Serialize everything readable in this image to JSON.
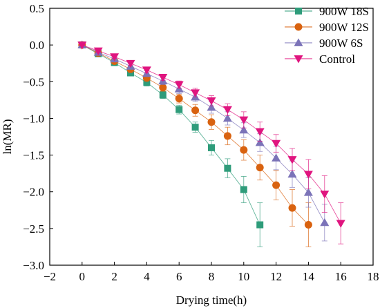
{
  "chart_data": {
    "type": "line",
    "xlabel": "Drying time(h)",
    "ylabel": "ln(MR)",
    "xlim": [
      -2,
      18
    ],
    "ylim": [
      -3.0,
      0.5
    ],
    "x_ticks": [
      -2,
      0,
      2,
      4,
      6,
      8,
      10,
      12,
      14,
      16,
      18
    ],
    "y_ticks": [
      0.5,
      0.0,
      -0.5,
      -1.0,
      -1.5,
      -2.0,
      -2.5,
      -3.0
    ],
    "x_tick_labels": [
      "−2",
      "0",
      "2",
      "4",
      "6",
      "8",
      "10",
      "12",
      "14",
      "16",
      "18"
    ],
    "y_tick_labels": [
      "0.5",
      "0.0",
      "−0.5",
      "−1.0",
      "−1.5",
      "−2.0",
      "−2.5",
      "−3.0"
    ],
    "legend_position": "top-right",
    "grid": false,
    "series": [
      {
        "name": "900W 18S",
        "color": "#2e9c7a",
        "marker": "square",
        "x": [
          0,
          1,
          2,
          3,
          4,
          5,
          6,
          7,
          8,
          9,
          10,
          11
        ],
        "y": [
          0.0,
          -0.12,
          -0.24,
          -0.38,
          -0.51,
          -0.68,
          -0.88,
          -1.12,
          -1.4,
          -1.68,
          -1.97,
          -2.45
        ],
        "err": [
          0.02,
          0.03,
          0.03,
          0.04,
          0.05,
          0.05,
          0.06,
          0.07,
          0.1,
          0.13,
          0.18,
          0.3
        ]
      },
      {
        "name": "900W 12S",
        "color": "#d9620f",
        "marker": "circle",
        "x": [
          0,
          1,
          2,
          3,
          4,
          5,
          6,
          7,
          8,
          9,
          10,
          11,
          12,
          13,
          14
        ],
        "y": [
          0.0,
          -0.11,
          -0.22,
          -0.33,
          -0.45,
          -0.58,
          -0.73,
          -0.89,
          -1.05,
          -1.24,
          -1.43,
          -1.67,
          -1.91,
          -2.22,
          -2.45
        ],
        "err": [
          0.02,
          0.03,
          0.03,
          0.04,
          0.04,
          0.05,
          0.06,
          0.08,
          0.1,
          0.12,
          0.14,
          0.17,
          0.2,
          0.25,
          0.3
        ]
      },
      {
        "name": "900W 6S",
        "color": "#7b73b8",
        "marker": "triangle-up",
        "x": [
          0,
          1,
          2,
          3,
          4,
          5,
          6,
          7,
          8,
          9,
          10,
          11,
          12,
          13,
          14,
          15
        ],
        "y": [
          0.0,
          -0.1,
          -0.19,
          -0.29,
          -0.39,
          -0.49,
          -0.6,
          -0.71,
          -0.85,
          -1.0,
          -1.16,
          -1.33,
          -1.54,
          -1.76,
          -2.01,
          -2.42
        ],
        "err": [
          0.02,
          0.03,
          0.03,
          0.04,
          0.04,
          0.05,
          0.06,
          0.06,
          0.08,
          0.09,
          0.1,
          0.12,
          0.16,
          0.18,
          0.2,
          0.25
        ]
      },
      {
        "name": "Control",
        "color": "#e0157f",
        "marker": "triangle-down",
        "x": [
          0,
          1,
          2,
          3,
          4,
          5,
          6,
          7,
          8,
          9,
          10,
          11,
          12,
          13,
          14,
          15,
          16
        ],
        "y": [
          0.0,
          -0.08,
          -0.16,
          -0.25,
          -0.34,
          -0.44,
          -0.54,
          -0.65,
          -0.76,
          -0.88,
          -1.02,
          -1.18,
          -1.34,
          -1.56,
          -1.76,
          -2.03,
          -2.43
        ],
        "err": [
          0.01,
          0.02,
          0.02,
          0.03,
          0.04,
          0.04,
          0.05,
          0.06,
          0.07,
          0.08,
          0.11,
          0.13,
          0.12,
          0.15,
          0.2,
          0.25,
          0.28
        ]
      }
    ]
  }
}
